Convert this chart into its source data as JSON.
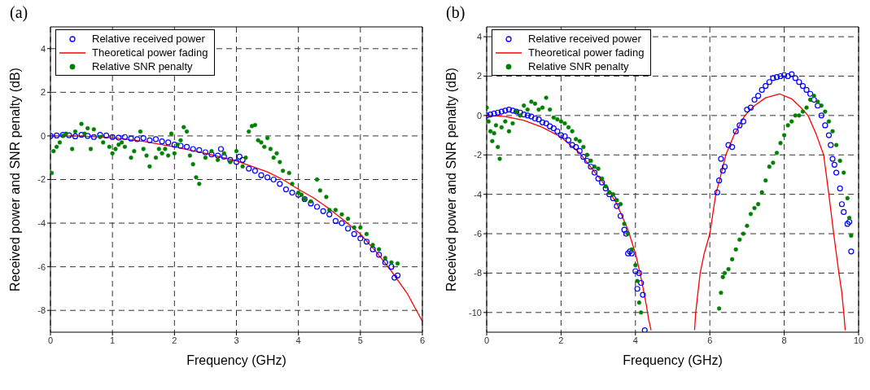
{
  "chart_data": [
    {
      "type": "scatter",
      "title": "(a)",
      "xlabel": "Frequency (GHz)",
      "ylabel": "Received power and SNR penalty (dB)",
      "xlim": [
        0,
        6
      ],
      "xticks": [
        0,
        1,
        2,
        3,
        4,
        5,
        6
      ],
      "ylim": [
        -9,
        5
      ],
      "yticks": [
        -8,
        -6,
        -4,
        -2,
        0,
        2,
        4
      ],
      "grid": true,
      "legend": "top left",
      "series": [
        {
          "name": "Relative received power",
          "type": "scatter",
          "marker": "circle",
          "color": "#0000ff",
          "x": [
            0,
            0.1,
            0.2,
            0.3,
            0.4,
            0.5,
            0.6,
            0.7,
            0.8,
            0.9,
            1.0,
            1.1,
            1.2,
            1.3,
            1.4,
            1.5,
            1.6,
            1.7,
            1.8,
            1.9,
            2.0,
            2.1,
            2.2,
            2.3,
            2.4,
            2.5,
            2.6,
            2.7,
            2.75,
            2.8,
            2.9,
            3.0,
            3.05,
            3.1,
            3.2,
            3.3,
            3.4,
            3.5,
            3.6,
            3.7,
            3.8,
            3.9,
            4.0,
            4.1,
            4.2,
            4.3,
            4.4,
            4.5,
            4.6,
            4.7,
            4.8,
            4.9,
            5.0,
            5.1,
            5.2,
            5.3,
            5.4,
            5.5,
            5.55,
            5.6
          ],
          "values": [
            0,
            0.02,
            0.05,
            0.03,
            -0.02,
            0.05,
            0,
            -0.05,
            0.05,
            0.02,
            -0.05,
            -0.08,
            -0.05,
            -0.12,
            -0.15,
            -0.1,
            -0.2,
            -0.15,
            -0.25,
            -0.3,
            -0.4,
            -0.45,
            -0.5,
            -0.6,
            -0.65,
            -0.75,
            -0.85,
            -0.9,
            -0.6,
            -0.95,
            -1.1,
            -1.2,
            -0.95,
            -1.1,
            -1.5,
            -1.6,
            -1.8,
            -1.9,
            -2.0,
            -2.2,
            -2.45,
            -2.6,
            -2.7,
            -2.9,
            -3.1,
            -3.25,
            -3.45,
            -3.6,
            -3.9,
            -4.0,
            -4.25,
            -4.5,
            -4.7,
            -4.85,
            -5.2,
            -5.45,
            -5.8,
            -6.0,
            -6.5,
            -6.4
          ]
        },
        {
          "name": "Theoretical power fading",
          "type": "line",
          "marker": "none",
          "color": "#ff0000",
          "x": [
            0,
            0.5,
            1,
            1.5,
            2,
            2.5,
            3,
            3.25,
            3.5,
            3.75,
            4,
            4.25,
            4.5,
            4.75,
            5,
            5.25,
            5.5,
            5.75,
            6
          ],
          "values": [
            0,
            -0.01,
            -0.08,
            -0.25,
            -0.5,
            -0.8,
            -1.15,
            -1.4,
            -1.65,
            -2.0,
            -2.45,
            -2.85,
            -3.35,
            -3.9,
            -4.5,
            -5.3,
            -6.2,
            -7.2,
            -8.5
          ]
        },
        {
          "name": "Relative SNR penalty",
          "type": "scatter",
          "marker": "circle",
          "color": "#008000",
          "x": [
            0.02,
            0.05,
            0.1,
            0.15,
            0.2,
            0.25,
            0.35,
            0.4,
            0.5,
            0.55,
            0.6,
            0.65,
            0.7,
            0.8,
            0.85,
            0.95,
            1.0,
            1.05,
            1.1,
            1.15,
            1.2,
            1.3,
            1.35,
            1.45,
            1.5,
            1.55,
            1.6,
            1.7,
            1.75,
            1.8,
            1.85,
            1.9,
            1.95,
            2.0,
            2.05,
            2.1,
            2.15,
            2.2,
            2.25,
            2.3,
            2.35,
            2.4,
            2.5,
            2.6,
            2.7,
            2.8,
            2.9,
            3.0,
            3.1,
            3.15,
            3.2,
            3.25,
            3.3,
            3.35,
            3.4,
            3.45,
            3.5,
            3.55,
            3.6,
            3.65,
            3.7,
            3.75,
            3.85,
            3.9,
            4.0,
            4.05,
            4.1,
            4.2,
            4.3,
            4.35,
            4.45,
            4.5,
            4.6,
            4.7,
            4.8,
            4.9,
            5.0,
            5.1,
            5.2,
            5.3,
            5.4,
            5.5,
            5.6
          ],
          "values": [
            -1.7,
            -0.7,
            -0.5,
            -0.3,
            0,
            0.1,
            -0.6,
            0.2,
            0.55,
            0.1,
            0.35,
            -0.6,
            0.3,
            -0.05,
            -0.3,
            -0.5,
            -0.8,
            -0.6,
            -0.4,
            -0.3,
            -0.5,
            -1.0,
            -0.7,
            0.2,
            -0.6,
            -0.9,
            -1.4,
            -1.0,
            -0.6,
            -0.8,
            -0.6,
            -0.9,
            0.1,
            -0.8,
            -0.4,
            -0.2,
            0.4,
            0.2,
            -0.9,
            -1.3,
            -1.9,
            -2.2,
            -1.0,
            -0.7,
            -1.1,
            -0.8,
            -1.2,
            -0.7,
            -1.4,
            -1.0,
            0.2,
            0.45,
            0.5,
            -0.2,
            -0.3,
            -0.5,
            -0.1,
            -0.6,
            -1.0,
            -0.8,
            -1.2,
            -1.6,
            -1.7,
            -2.2,
            -2.6,
            -2.7,
            -2.9,
            -3.0,
            -2.0,
            -2.5,
            -2.8,
            -3.4,
            -3.4,
            -3.6,
            -3.8,
            -4.2,
            -4.2,
            -4.5,
            -5.0,
            -5.2,
            -5.6,
            -5.8,
            -5.85
          ]
        }
      ]
    },
    {
      "type": "scatter",
      "title": "(b)",
      "xlabel": "Frequency (GHz)",
      "ylabel": "Received power and SNR penalty (dB)",
      "xlim": [
        0,
        10
      ],
      "xticks": [
        0,
        2,
        4,
        6,
        8,
        10
      ],
      "ylim": [
        -11,
        4.5
      ],
      "yticks": [
        -10,
        -8,
        -6,
        -4,
        -2,
        0,
        2,
        4
      ],
      "grid": true,
      "legend": "top left",
      "series": [
        {
          "name": "Relative received power",
          "type": "scatter",
          "marker": "circle",
          "color": "#0000ff",
          "x": [
            0,
            0.1,
            0.2,
            0.3,
            0.4,
            0.5,
            0.6,
            0.7,
            0.8,
            0.9,
            1.0,
            1.1,
            1.2,
            1.3,
            1.4,
            1.5,
            1.6,
            1.7,
            1.8,
            1.9,
            2.0,
            2.1,
            2.2,
            2.3,
            2.4,
            2.5,
            2.6,
            2.7,
            2.8,
            2.9,
            3.0,
            3.1,
            3.2,
            3.3,
            3.4,
            3.5,
            3.6,
            3.7,
            3.75,
            3.8,
            3.85,
            3.9,
            4.0,
            4.05,
            4.1,
            4.15,
            4.2,
            4.25,
            6.2,
            6.25,
            6.3,
            6.35,
            6.4,
            6.5,
            6.6,
            6.7,
            6.8,
            6.9,
            7.0,
            7.1,
            7.2,
            7.3,
            7.4,
            7.5,
            7.6,
            7.7,
            7.8,
            7.9,
            8.0,
            8.1,
            8.2,
            8.3,
            8.4,
            8.5,
            8.6,
            8.7,
            8.8,
            8.9,
            9.0,
            9.1,
            9.2,
            9.25,
            9.3,
            9.35,
            9.4,
            9.5,
            9.55,
            9.6,
            9.7,
            9.75,
            9.8
          ],
          "values": [
            0,
            0.05,
            0.1,
            0.15,
            0.2,
            0.25,
            0.3,
            0.25,
            0.2,
            0.15,
            0.05,
            0,
            -0.05,
            -0.15,
            -0.2,
            -0.35,
            -0.4,
            -0.55,
            -0.65,
            -0.8,
            -1.0,
            -1.05,
            -1.25,
            -1.5,
            -1.6,
            -1.8,
            -2.1,
            -2.3,
            -2.6,
            -2.9,
            -3.2,
            -3.4,
            -3.7,
            -4.0,
            -4.2,
            -4.6,
            -5.1,
            -5.8,
            -6.0,
            -7.0,
            -6.9,
            -7.0,
            -7.9,
            -8.8,
            -8.0,
            -8.5,
            -9.1,
            -10.9,
            -3.9,
            -3.3,
            -2.2,
            -2.8,
            -2.6,
            -1.5,
            -1.6,
            -0.8,
            -0.5,
            -0.3,
            0.3,
            0.4,
            0.8,
            1.0,
            1.3,
            1.5,
            1.7,
            1.9,
            1.95,
            2.0,
            2.05,
            2.0,
            2.1,
            1.9,
            1.7,
            1.5,
            1.3,
            1.1,
            0.8,
            0.5,
            0,
            -0.5,
            -1.0,
            -1.5,
            -2.2,
            -2.5,
            -2.9,
            -3.7,
            -4.5,
            -4.9,
            -5.5,
            -5.4,
            -6.9
          ]
        },
        {
          "name": "Theoretical power fading",
          "type": "line",
          "marker": "none",
          "color": "#ff0000",
          "x": [
            0,
            0.5,
            1,
            1.5,
            2,
            2.5,
            3,
            3.25,
            3.5,
            3.8,
            4,
            4.1,
            4.2,
            4.3,
            4.35,
            4.42,
            5.0,
            5.59,
            5.62,
            5.68,
            5.74,
            5.85,
            6.0,
            6.16,
            6.3,
            6.43,
            6.65,
            6.94,
            7.2,
            7.5,
            7.87,
            8.2,
            8.45,
            8.64,
            8.85,
            9.06,
            9.2,
            9.33,
            9.4,
            9.47,
            9.55,
            9.6,
            9.64
          ],
          "values": [
            0,
            -0.05,
            -0.25,
            -0.6,
            -1.1,
            -1.9,
            -3.1,
            -3.7,
            -4.5,
            -5.8,
            -7.0,
            -7.8,
            -8.7,
            -9.7,
            -10.3,
            -10.9,
            null,
            -10.9,
            -10,
            -9,
            -8,
            -7,
            -6,
            -4,
            -3,
            -2,
            -1,
            0,
            0.5,
            0.9,
            1.1,
            0.85,
            0.4,
            0,
            -0.9,
            -2,
            -4,
            -6,
            -7,
            -8,
            -9,
            -10,
            -10.9
          ]
        },
        {
          "name": "Relative SNR penalty",
          "type": "scatter",
          "marker": "circle",
          "color": "#008000",
          "x": [
            0,
            0.05,
            0.1,
            0.15,
            0.2,
            0.25,
            0.3,
            0.35,
            0.4,
            0.5,
            0.6,
            0.7,
            0.8,
            0.9,
            1.0,
            1.1,
            1.2,
            1.3,
            1.4,
            1.5,
            1.6,
            1.7,
            1.8,
            1.9,
            2.0,
            2.1,
            2.2,
            2.3,
            2.4,
            2.5,
            2.6,
            2.7,
            2.8,
            2.9,
            3.0,
            3.1,
            3.2,
            3.3,
            3.4,
            3.5,
            3.6,
            3.7,
            3.8,
            3.9,
            4.0,
            4.05,
            4.1,
            4.15,
            6.25,
            6.3,
            6.35,
            6.4,
            6.5,
            6.6,
            6.7,
            6.8,
            6.9,
            7.0,
            7.1,
            7.2,
            7.3,
            7.4,
            7.5,
            7.6,
            7.7,
            7.8,
            7.9,
            8.0,
            8.1,
            8.2,
            8.3,
            8.4,
            8.5,
            8.6,
            8.7,
            8.8,
            8.9,
            9.0,
            9.1,
            9.2,
            9.3,
            9.4,
            9.5,
            9.6,
            9.7,
            9.75,
            9.8
          ],
          "values": [
            0.4,
            -0.3,
            -0.8,
            -1.3,
            -0.9,
            -0.5,
            -1.6,
            -2.2,
            -0.6,
            -0.3,
            -0.8,
            -0.4,
            0.2,
            0,
            0.5,
            0.3,
            0.7,
            0.6,
            0.3,
            0.4,
            0.9,
            0.3,
            -0.1,
            -0.2,
            -0.3,
            -0.4,
            -0.6,
            -0.8,
            -1.2,
            -1.3,
            -1.6,
            -2.0,
            -2.3,
            -2.6,
            -2.7,
            -3.2,
            -3.6,
            -3.9,
            -4.0,
            -4.3,
            -4.5,
            -5.5,
            -6.0,
            -6.8,
            -7.6,
            -8.4,
            -9.5,
            -10.0,
            -9.8,
            -9.0,
            -8.2,
            -8.0,
            -7.8,
            -7.3,
            -6.8,
            -6.3,
            -6.0,
            -5.6,
            -5.0,
            -4.7,
            -4.5,
            -3.9,
            -3.3,
            -2.6,
            -2.4,
            -1.9,
            -1.4,
            -1.0,
            -0.5,
            -0.3,
            0,
            0,
            0.2,
            0.4,
            0.8,
            1.0,
            0.7,
            0.5,
            0.2,
            -0.3,
            -0.8,
            -1.5,
            -2.3,
            -2.9,
            -4.2,
            -5.2,
            -6.1
          ]
        }
      ]
    }
  ]
}
